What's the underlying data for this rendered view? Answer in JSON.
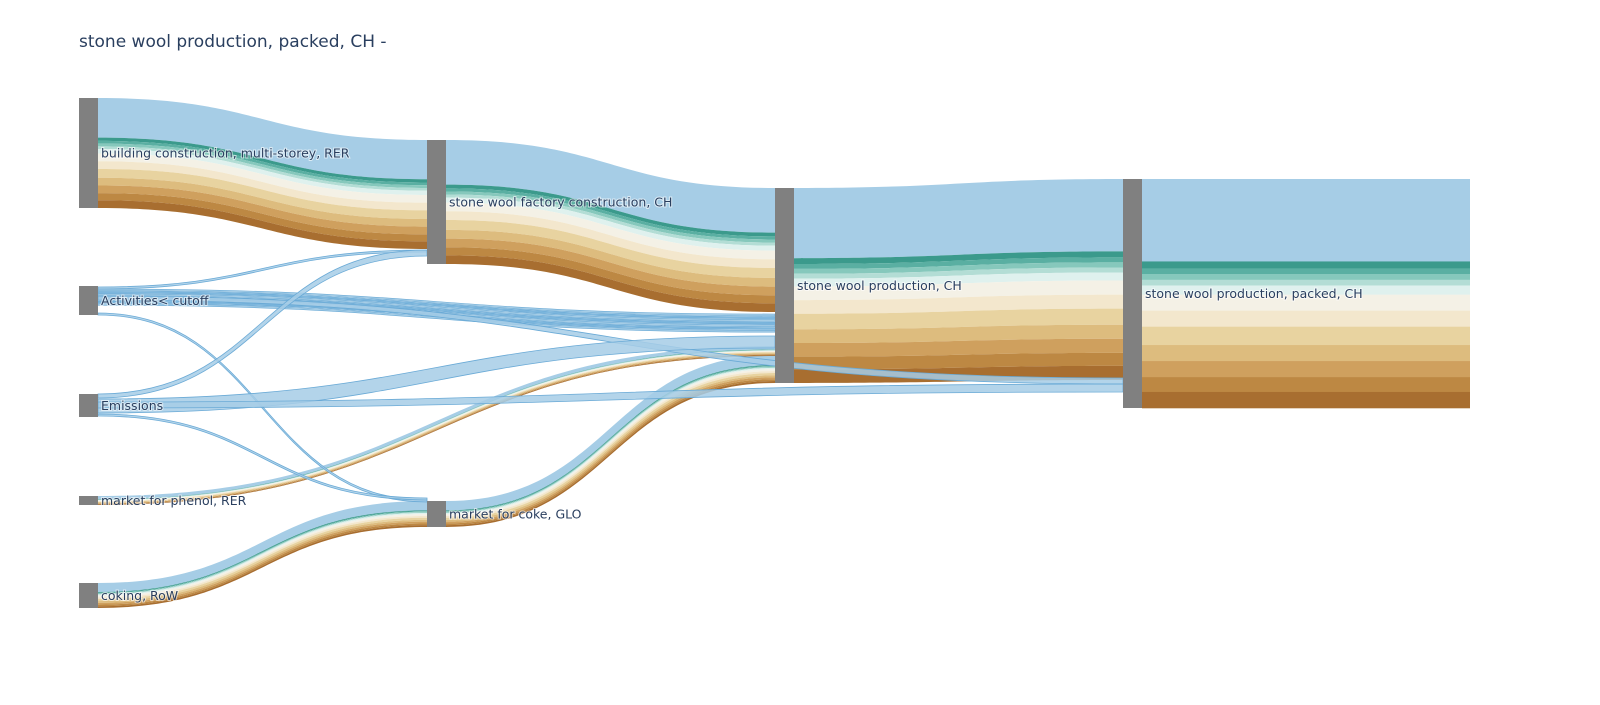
{
  "chart_data": {
    "type": "sankey",
    "title": "stone wool production, packed, CH -",
    "node_color": "#808080",
    "nodes": [
      {
        "id": "building",
        "label": "building construction, multi-storey, RER"
      },
      {
        "id": "cutoff",
        "label": "Activities< cutoff"
      },
      {
        "id": "emissions",
        "label": "Emissions"
      },
      {
        "id": "phenol",
        "label": "market for phenol, RER"
      },
      {
        "id": "coking",
        "label": "coking, RoW"
      },
      {
        "id": "factory",
        "label": "stone wool factory construction, CH"
      },
      {
        "id": "coke",
        "label": "market for coke, GLO"
      },
      {
        "id": "production",
        "label": "stone wool production, CH"
      },
      {
        "id": "packed",
        "label": "stone wool production, packed, CH"
      }
    ],
    "band_colors": [
      "#a6cde6",
      "#3b9a8c",
      "#5aafa2",
      "#86c8bc",
      "#b3ddd5",
      "#dff1ee",
      "#f4f1e6",
      "#f3e7cd",
      "#e8d3a0",
      "#ddbc7e",
      "#cfa05e",
      "#bd8843",
      "#a86e30"
    ],
    "links": [
      {
        "source": "building",
        "target": "factory",
        "value": 3.5
      },
      {
        "source": "factory",
        "target": "production",
        "value": 4.0
      },
      {
        "source": "production",
        "target": "packed",
        "value": 6.3
      },
      {
        "source": "coking",
        "target": "coke",
        "value": 0.8
      },
      {
        "source": "coke",
        "target": "production",
        "value": 0.8
      },
      {
        "source": "phenol",
        "target": "production",
        "value": 0.3
      },
      {
        "source": "cutoff",
        "target": "production",
        "value": 0.6
      },
      {
        "source": "cutoff",
        "target": "packed",
        "value": 0.1
      },
      {
        "source": "cutoff",
        "target": "factory",
        "value": 0.05
      },
      {
        "source": "cutoff",
        "target": "coke",
        "value": 0.05
      },
      {
        "source": "emissions",
        "target": "production",
        "value": 0.35
      },
      {
        "source": "emissions",
        "target": "factory",
        "value": 0.15
      },
      {
        "source": "emissions",
        "target": "packed",
        "value": 0.2
      },
      {
        "source": "emissions",
        "target": "coke",
        "value": 0.05
      }
    ]
  }
}
